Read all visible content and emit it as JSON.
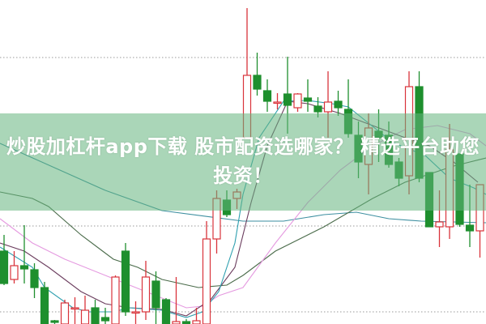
{
  "title": "炒股加杠杆app下载 股市配资选哪家？ 精选平台助您投资！",
  "chart_data": {
    "type": "candlestick",
    "ylim": [
      0,
      100
    ],
    "grid": "dotted horizontal",
    "colors": {
      "up": "#d9343b",
      "down": "#1e8f2e",
      "banner": "#7fc395"
    },
    "candles": [
      {
        "o": 22.5,
        "h": 27.5,
        "l": 12,
        "c": 12.5
      },
      {
        "o": 13.75,
        "h": 22.5,
        "l": 12.5,
        "c": 18
      },
      {
        "o": 18,
        "h": 30.5,
        "l": 12.5,
        "c": 17
      },
      {
        "o": 16.75,
        "h": 18.75,
        "l": 8,
        "c": 11.25
      },
      {
        "o": 11.25,
        "h": 13,
        "l": 0,
        "c": 0
      },
      {
        "o": 1,
        "h": 1.25,
        "l": 0,
        "c": 0.5
      },
      {
        "o": 0,
        "h": 7.5,
        "l": 0,
        "c": 6.5
      },
      {
        "o": 5,
        "h": 8.25,
        "l": 0,
        "c": 5
      },
      {
        "o": 0,
        "h": 8.75,
        "l": 0,
        "c": 4.25
      },
      {
        "o": 5,
        "h": 7.5,
        "l": 0,
        "c": 0
      },
      {
        "o": 2,
        "h": 5,
        "l": 0,
        "c": 1
      },
      {
        "o": 0,
        "h": 15,
        "l": 0,
        "c": 14.5
      },
      {
        "o": 22.5,
        "h": 25,
        "l": 2.5,
        "c": 3.75
      },
      {
        "o": 3.75,
        "h": 7,
        "l": 0,
        "c": 3.75
      },
      {
        "o": 3.75,
        "h": 19.5,
        "l": 1.25,
        "c": 14.5
      },
      {
        "o": 13.25,
        "h": 16.25,
        "l": 0,
        "c": 5
      },
      {
        "o": 7.5,
        "h": 8,
        "l": 0,
        "c": 0
      },
      {
        "o": 0,
        "h": 14.5,
        "l": 0,
        "c": 0.75
      },
      {
        "o": 0.75,
        "h": 1.5,
        "l": 0,
        "c": 0
      },
      {
        "o": 0,
        "h": 5,
        "l": 0,
        "c": 1
      },
      {
        "o": 0,
        "h": 31.75,
        "l": 0,
        "c": 26.25
      },
      {
        "o": 26.25,
        "h": 41.25,
        "l": 21.75,
        "c": 38.75
      },
      {
        "o": 38.25,
        "h": 41.25,
        "l": 33,
        "c": 33.75
      },
      {
        "o": 38.75,
        "h": 41.75,
        "l": 35.5,
        "c": 40.75
      },
      {
        "o": 57.5,
        "h": 97.5,
        "l": 57.5,
        "c": 76.75
      },
      {
        "o": 76.75,
        "h": 83.75,
        "l": 70.5,
        "c": 72.5
      },
      {
        "o": 72,
        "h": 75.5,
        "l": 65.5,
        "c": 68.75
      },
      {
        "o": 68.5,
        "h": 71.25,
        "l": 66.25,
        "c": 68.5
      },
      {
        "o": 71,
        "h": 82.5,
        "l": 58.75,
        "c": 67.5
      },
      {
        "o": 66.75,
        "h": 71.25,
        "l": 65.5,
        "c": 71
      },
      {
        "o": 69.75,
        "h": 75.5,
        "l": 65.5,
        "c": 68.75
      },
      {
        "o": 67.25,
        "h": 70,
        "l": 63.75,
        "c": 65.5
      },
      {
        "o": 65.5,
        "h": 78,
        "l": 57.5,
        "c": 68.5
      },
      {
        "o": 68.75,
        "h": 72,
        "l": 64.25,
        "c": 66.75
      },
      {
        "o": 66.25,
        "h": 75.5,
        "l": 57.5,
        "c": 58.75
      },
      {
        "o": 58.25,
        "h": 62.5,
        "l": 45,
        "c": 50
      },
      {
        "o": 49.25,
        "h": 65,
        "l": 40,
        "c": 60.5
      },
      {
        "o": 59.5,
        "h": 66.25,
        "l": 50,
        "c": 57.5
      },
      {
        "o": 58.25,
        "h": 62.5,
        "l": 48.25,
        "c": 49.25
      },
      {
        "o": 50,
        "h": 51.25,
        "l": 42.5,
        "c": 45
      },
      {
        "o": 45.75,
        "h": 78,
        "l": 40,
        "c": 73.25
      },
      {
        "o": 73.25,
        "h": 78,
        "l": 43.75,
        "c": 45
      },
      {
        "o": 46.75,
        "h": 46.75,
        "l": 30,
        "c": 30
      },
      {
        "o": 30,
        "h": 41.25,
        "l": 23.75,
        "c": 31.5
      },
      {
        "o": 30,
        "h": 61.75,
        "l": 26.25,
        "c": 53.75
      },
      {
        "o": 52.5,
        "h": 52.5,
        "l": 30,
        "c": 30.75
      },
      {
        "o": 30.5,
        "h": 43,
        "l": 23.75,
        "c": 28.75
      },
      {
        "o": 28.75,
        "h": 43,
        "l": 20.5,
        "c": 43
      }
    ],
    "moving_averages": [
      {
        "color": "#3d8fa0",
        "points": [
          [
            -0.4,
            55.75
          ],
          [
            10,
            41.25
          ],
          [
            15.6,
            35
          ],
          [
            23.6,
            31.75
          ],
          [
            27.6,
            31.75
          ],
          [
            31.6,
            33.75
          ],
          [
            34.8,
            34.5
          ],
          [
            38,
            32.5
          ],
          [
            41.2,
            31.75
          ],
          [
            47.6,
            31.25
          ]
        ]
      },
      {
        "color": "#4a6b4a",
        "points": [
          [
            -0.4,
            40.75
          ],
          [
            2.8,
            38.75
          ],
          [
            4.4,
            36.25
          ],
          [
            7.6,
            27.5
          ],
          [
            10.8,
            20
          ],
          [
            13.2,
            17.5
          ],
          [
            15.6,
            13.75
          ],
          [
            19.2,
            11.25
          ],
          [
            22,
            12
          ],
          [
            23.6,
            15
          ],
          [
            26.8,
            22.5
          ],
          [
            31.6,
            30
          ],
          [
            36.4,
            38.75
          ],
          [
            39.6,
            43.75
          ],
          [
            44.4,
            48.75
          ],
          [
            47.6,
            51.25
          ]
        ]
      },
      {
        "color": "#e59ae0",
        "points": [
          [
            -0.4,
            32.5
          ],
          [
            2.8,
            25
          ],
          [
            6,
            20
          ],
          [
            10,
            15
          ],
          [
            14,
            10
          ],
          [
            18,
            5
          ],
          [
            19.6,
            5.5
          ],
          [
            21.2,
            8.75
          ],
          [
            23.6,
            11.25
          ],
          [
            26.8,
            25
          ],
          [
            30,
            37.5
          ],
          [
            33.2,
            47.5
          ],
          [
            36.4,
            55
          ],
          [
            39.6,
            60
          ],
          [
            42.8,
            61.25
          ],
          [
            46,
            58.75
          ],
          [
            47.6,
            55
          ]
        ]
      },
      {
        "color": "#6b3d5e",
        "points": [
          [
            -0.4,
            25
          ],
          [
            2,
            22.5
          ],
          [
            4.4,
            17.5
          ],
          [
            7.6,
            10
          ],
          [
            10,
            6.25
          ],
          [
            12.4,
            5
          ],
          [
            15.6,
            4.5
          ],
          [
            18,
            2.5
          ],
          [
            20.4,
            7.5
          ],
          [
            22.8,
            17.5
          ],
          [
            24.4,
            37.5
          ],
          [
            26,
            55
          ],
          [
            28,
            68.75
          ],
          [
            30,
            68
          ],
          [
            33.2,
            65
          ],
          [
            36.4,
            61.25
          ],
          [
            39.6,
            57.5
          ],
          [
            42,
            55
          ],
          [
            44.4,
            50
          ],
          [
            46.8,
            43.75
          ]
        ]
      },
      {
        "color": "#2fa0b0",
        "points": [
          [
            -0.4,
            23.75
          ],
          [
            2.8,
            17.5
          ],
          [
            4,
            11.25
          ],
          [
            6.8,
            5
          ],
          [
            8.4,
            3.75
          ],
          [
            10.8,
            3.75
          ],
          [
            12.4,
            5
          ],
          [
            15.6,
            4.25
          ],
          [
            18,
            2
          ],
          [
            19.6,
            3.75
          ],
          [
            21.2,
            10
          ],
          [
            22.8,
            25
          ],
          [
            23.6,
            40
          ],
          [
            25.2,
            57.5
          ],
          [
            27.6,
            68.75
          ],
          [
            30,
            69
          ],
          [
            32.4,
            68
          ],
          [
            34,
            67
          ],
          [
            36,
            62
          ],
          [
            38.4,
            56
          ],
          [
            41.6,
            52
          ],
          [
            44,
            45
          ],
          [
            46.4,
            42
          ],
          [
            47.6,
            40
          ]
        ]
      }
    ],
    "gridlines": [
      82.25,
      30.25,
      3.75
    ]
  }
}
